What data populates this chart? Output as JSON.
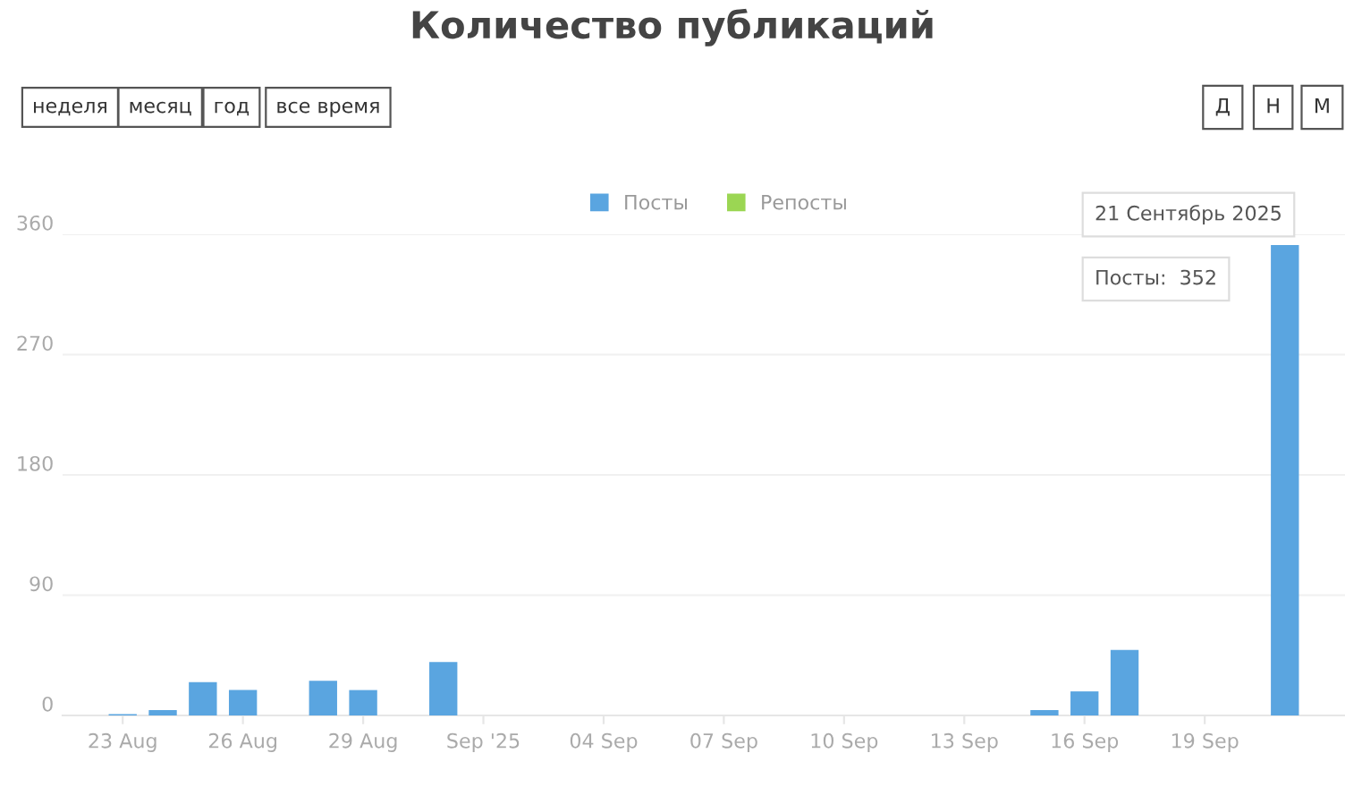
{
  "chart_data": {
    "type": "bar",
    "title": "Количество публикаций",
    "x": [
      "2025-08-23",
      "2025-08-24",
      "2025-08-25",
      "2025-08-26",
      "2025-08-27",
      "2025-08-28",
      "2025-08-29",
      "2025-08-30",
      "2025-08-31",
      "2025-09-01",
      "2025-09-02",
      "2025-09-03",
      "2025-09-04",
      "2025-09-05",
      "2025-09-06",
      "2025-09-07",
      "2025-09-08",
      "2025-09-09",
      "2025-09-10",
      "2025-09-11",
      "2025-09-12",
      "2025-09-13",
      "2025-09-14",
      "2025-09-15",
      "2025-09-16",
      "2025-09-17",
      "2025-09-18",
      "2025-09-19",
      "2025-09-20",
      "2025-09-21"
    ],
    "series": [
      {
        "name": "Посты",
        "color": "#5aa5e0",
        "values": [
          1,
          4,
          25,
          19,
          0,
          26,
          19,
          0,
          40,
          0,
          0,
          0,
          0,
          0,
          0,
          0,
          0,
          0,
          0,
          0,
          0,
          0,
          0,
          4,
          18,
          49,
          0,
          0,
          0,
          352
        ]
      },
      {
        "name": "Репосты",
        "color": "#9bd653",
        "values": [
          0,
          0,
          0,
          0,
          0,
          0,
          0,
          0,
          0,
          0,
          0,
          0,
          0,
          0,
          0,
          0,
          0,
          0,
          0,
          0,
          0,
          0,
          0,
          0,
          0,
          0,
          0,
          0,
          0,
          0
        ]
      }
    ],
    "xlim": [
      "2025-08-21T12:00",
      "2025-09-22T12:00"
    ],
    "xticks": [
      {
        "value": "2025-08-23",
        "label": "23 Aug"
      },
      {
        "value": "2025-08-26",
        "label": "26 Aug"
      },
      {
        "value": "2025-08-29",
        "label": "29 Aug"
      },
      {
        "value": "2025-09-01",
        "label": "Sep '25"
      },
      {
        "value": "2025-09-04",
        "label": "04 Sep"
      },
      {
        "value": "2025-09-07",
        "label": "07 Sep"
      },
      {
        "value": "2025-09-10",
        "label": "10 Sep"
      },
      {
        "value": "2025-09-13",
        "label": "13 Sep"
      },
      {
        "value": "2025-09-16",
        "label": "16 Sep"
      },
      {
        "value": "2025-09-19",
        "label": "19 Sep"
      }
    ],
    "ylim": [
      0,
      360
    ],
    "yticks": [
      0,
      90,
      180,
      270,
      360
    ],
    "grid": "y",
    "legend": "top",
    "annotations": [
      "неделя",
      "месяц",
      "год",
      "все время",
      "Д",
      "Н",
      "М",
      "21 Сентябрь 2025",
      "Посты:  352"
    ]
  }
}
